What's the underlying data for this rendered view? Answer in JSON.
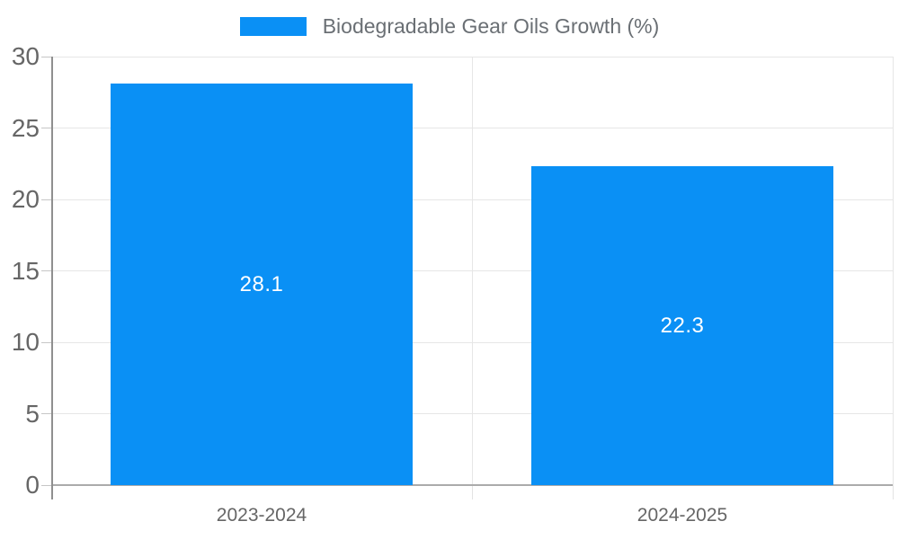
{
  "chart_data": {
    "type": "bar",
    "title": "",
    "legend": {
      "label": "Biodegradable Gear Oils Growth (%)",
      "position": "top"
    },
    "categories": [
      "2023-2024",
      "2024-2025"
    ],
    "series": [
      {
        "name": "Biodegradable Gear Oils Growth (%)",
        "values": [
          28.1,
          22.3
        ]
      }
    ],
    "data_labels": [
      "28.1",
      "22.3"
    ],
    "xlabel": "",
    "ylabel": "",
    "ylim": [
      0,
      30
    ],
    "yticks": [
      0,
      5,
      10,
      15,
      20,
      25,
      30
    ],
    "grid": true,
    "colors": {
      "bar": "#0a90f5",
      "grid": "#e6e6e6",
      "axis_x": "#ababab",
      "axis_y": "#8f8f8f",
      "y_tick": "#c6c6c6",
      "x_tick": "#e3e3e3",
      "axis_text": "#666666",
      "legend_text": "#6a6f74",
      "data_label_text": "#ffffff",
      "background": "#ffffff"
    }
  }
}
